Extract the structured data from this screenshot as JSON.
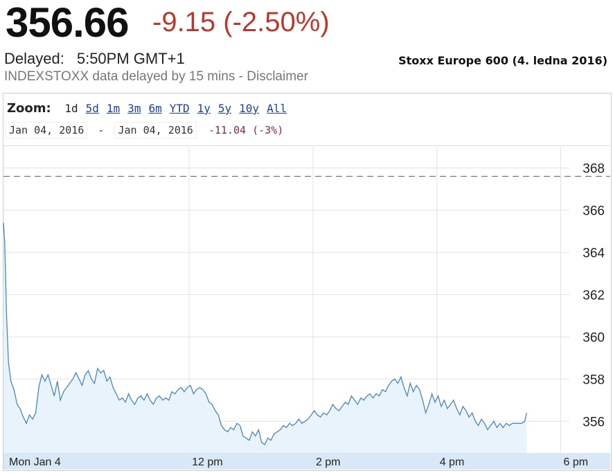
{
  "quote": {
    "price": "356.66",
    "change": "-9.15 (-2.50%)",
    "delayed_label": "Delayed:",
    "delayed_time": "5:50PM GMT+1",
    "source_note": "INDEXSTOXX data delayed by 15 mins - Disclaimer"
  },
  "caption": "Stoxx Europe 600 (4. ledna 2016)",
  "zoom": {
    "label": "Zoom:",
    "options": [
      "1d",
      "5d",
      "1m",
      "3m",
      "6m",
      "YTD",
      "1y",
      "5y",
      "10y",
      "All"
    ],
    "selected": "1d"
  },
  "range": {
    "from": "Jan 04, 2016",
    "separator": "-",
    "to": "Jan 04, 2016",
    "change": "-11.04 (-3%)"
  },
  "colors": {
    "price": "#111111",
    "change": "#b73a2e",
    "line": "#4a86b8",
    "fill": "#e8f3fc",
    "reference_line": "#555555",
    "axis_band": "#d9e8f7"
  },
  "chart_data": {
    "type": "area",
    "title": "",
    "xlabel": "",
    "ylabel": "",
    "x_unit": "hours (time of day)",
    "xlim": [
      9.0,
      18.8
    ],
    "ylim": [
      354.5,
      369.0
    ],
    "y_ticks": [
      356,
      358,
      360,
      362,
      364,
      366,
      368
    ],
    "x_ticks": [
      {
        "value": 9.0,
        "label": "Mon Jan 4"
      },
      {
        "value": 12.0,
        "label": "12 pm"
      },
      {
        "value": 14.0,
        "label": "2 pm"
      },
      {
        "value": 16.0,
        "label": "4 pm"
      },
      {
        "value": 18.0,
        "label": "6 pm"
      }
    ],
    "y_axis_position": "right",
    "grid": true,
    "reference_line": {
      "value": 367.6,
      "style": "dashed"
    },
    "series": [
      {
        "values": [
          [
            9.0,
            365.4
          ],
          [
            9.02,
            364.5
          ],
          [
            9.05,
            361.0
          ],
          [
            9.08,
            358.8
          ],
          [
            9.12,
            357.9
          ],
          [
            9.17,
            357.5
          ],
          [
            9.22,
            356.8
          ],
          [
            9.27,
            356.6
          ],
          [
            9.32,
            356.2
          ],
          [
            9.37,
            355.9
          ],
          [
            9.42,
            356.3
          ],
          [
            9.47,
            356.1
          ],
          [
            9.52,
            356.4
          ],
          [
            9.57,
            357.6
          ],
          [
            9.62,
            358.2
          ],
          [
            9.67,
            357.9
          ],
          [
            9.72,
            358.2
          ],
          [
            9.77,
            357.7
          ],
          [
            9.82,
            357.2
          ],
          [
            9.87,
            357.9
          ],
          [
            9.92,
            357.0
          ],
          [
            9.97,
            357.4
          ],
          [
            10.02,
            357.6
          ],
          [
            10.07,
            357.8
          ],
          [
            10.12,
            358.0
          ],
          [
            10.17,
            358.3
          ],
          [
            10.22,
            358.0
          ],
          [
            10.27,
            357.7
          ],
          [
            10.32,
            358.2
          ],
          [
            10.37,
            358.4
          ],
          [
            10.42,
            358.0
          ],
          [
            10.47,
            357.8
          ],
          [
            10.52,
            358.5
          ],
          [
            10.57,
            358.3
          ],
          [
            10.62,
            358.4
          ],
          [
            10.67,
            357.9
          ],
          [
            10.72,
            358.1
          ],
          [
            10.77,
            357.6
          ],
          [
            10.82,
            357.3
          ],
          [
            10.87,
            357.0
          ],
          [
            10.92,
            357.1
          ],
          [
            10.97,
            356.9
          ],
          [
            11.02,
            357.3
          ],
          [
            11.07,
            357.0
          ],
          [
            11.12,
            356.8
          ],
          [
            11.17,
            357.1
          ],
          [
            11.22,
            357.2
          ],
          [
            11.27,
            357.0
          ],
          [
            11.32,
            357.3
          ],
          [
            11.37,
            357.0
          ],
          [
            11.42,
            356.8
          ],
          [
            11.47,
            357.1
          ],
          [
            11.52,
            357.2
          ],
          [
            11.57,
            357.0
          ],
          [
            11.62,
            357.1
          ],
          [
            11.67,
            357.0
          ],
          [
            11.72,
            357.4
          ],
          [
            11.77,
            357.3
          ],
          [
            11.82,
            357.5
          ],
          [
            11.87,
            357.6
          ],
          [
            11.92,
            357.4
          ],
          [
            11.97,
            357.6
          ],
          [
            12.02,
            357.7
          ],
          [
            12.07,
            357.3
          ],
          [
            12.12,
            357.5
          ],
          [
            12.17,
            357.6
          ],
          [
            12.22,
            357.5
          ],
          [
            12.27,
            357.3
          ],
          [
            12.32,
            356.9
          ],
          [
            12.37,
            356.8
          ],
          [
            12.42,
            356.5
          ],
          [
            12.47,
            356.3
          ],
          [
            12.52,
            355.8
          ],
          [
            12.57,
            355.6
          ],
          [
            12.62,
            355.5
          ],
          [
            12.67,
            355.7
          ],
          [
            12.72,
            355.6
          ],
          [
            12.77,
            355.9
          ],
          [
            12.82,
            355.8
          ],
          [
            12.87,
            355.3
          ],
          [
            12.92,
            355.2
          ],
          [
            12.97,
            355.1
          ],
          [
            13.02,
            355.5
          ],
          [
            13.07,
            355.3
          ],
          [
            13.12,
            355.6
          ],
          [
            13.17,
            355.0
          ],
          [
            13.22,
            354.9
          ],
          [
            13.27,
            355.2
          ],
          [
            13.32,
            355.1
          ],
          [
            13.37,
            355.4
          ],
          [
            13.42,
            355.5
          ],
          [
            13.47,
            355.6
          ],
          [
            13.52,
            355.8
          ],
          [
            13.57,
            355.7
          ],
          [
            13.62,
            355.9
          ],
          [
            13.67,
            355.8
          ],
          [
            13.72,
            355.9
          ],
          [
            13.77,
            356.1
          ],
          [
            13.82,
            355.9
          ],
          [
            13.87,
            356.0
          ],
          [
            13.92,
            356.1
          ],
          [
            13.97,
            356.3
          ],
          [
            14.02,
            356.5
          ],
          [
            14.07,
            356.3
          ],
          [
            14.12,
            356.2
          ],
          [
            14.17,
            356.4
          ],
          [
            14.22,
            356.3
          ],
          [
            14.27,
            356.5
          ],
          [
            14.32,
            356.8
          ],
          [
            14.37,
            356.6
          ],
          [
            14.42,
            356.5
          ],
          [
            14.47,
            356.7
          ],
          [
            14.52,
            356.9
          ],
          [
            14.57,
            356.8
          ],
          [
            14.62,
            357.2
          ],
          [
            14.67,
            357.0
          ],
          [
            14.72,
            356.8
          ],
          [
            14.77,
            357.1
          ],
          [
            14.82,
            357.0
          ],
          [
            14.87,
            357.2
          ],
          [
            14.92,
            357.3
          ],
          [
            14.97,
            357.1
          ],
          [
            15.02,
            357.3
          ],
          [
            15.07,
            357.2
          ],
          [
            15.12,
            357.5
          ],
          [
            15.17,
            357.4
          ],
          [
            15.22,
            357.7
          ],
          [
            15.27,
            357.9
          ],
          [
            15.32,
            358.0
          ],
          [
            15.37,
            357.8
          ],
          [
            15.42,
            358.1
          ],
          [
            15.47,
            357.6
          ],
          [
            15.52,
            357.2
          ],
          [
            15.57,
            357.8
          ],
          [
            15.62,
            357.4
          ],
          [
            15.67,
            357.7
          ],
          [
            15.72,
            357.5
          ],
          [
            15.77,
            357.0
          ],
          [
            15.82,
            356.4
          ],
          [
            15.87,
            356.8
          ],
          [
            15.92,
            357.3
          ],
          [
            15.97,
            356.9
          ],
          [
            16.02,
            357.2
          ],
          [
            16.07,
            356.7
          ],
          [
            16.12,
            357.0
          ],
          [
            16.17,
            356.6
          ],
          [
            16.22,
            356.8
          ],
          [
            16.27,
            357.0
          ],
          [
            16.32,
            356.6
          ],
          [
            16.37,
            356.3
          ],
          [
            16.42,
            356.7
          ],
          [
            16.47,
            356.5
          ],
          [
            16.52,
            356.2
          ],
          [
            16.57,
            356.4
          ],
          [
            16.62,
            356.0
          ],
          [
            16.67,
            355.8
          ],
          [
            16.72,
            356.1
          ],
          [
            16.77,
            355.9
          ],
          [
            16.82,
            355.6
          ],
          [
            16.87,
            355.8
          ],
          [
            16.92,
            356.0
          ],
          [
            16.97,
            355.7
          ],
          [
            17.02,
            355.9
          ],
          [
            17.07,
            355.7
          ],
          [
            17.12,
            355.9
          ],
          [
            17.17,
            355.8
          ],
          [
            17.22,
            355.9
          ],
          [
            17.27,
            355.9
          ],
          [
            17.32,
            355.9
          ],
          [
            17.37,
            355.9
          ],
          [
            17.42,
            356.0
          ],
          [
            17.45,
            356.4
          ]
        ]
      }
    ]
  }
}
